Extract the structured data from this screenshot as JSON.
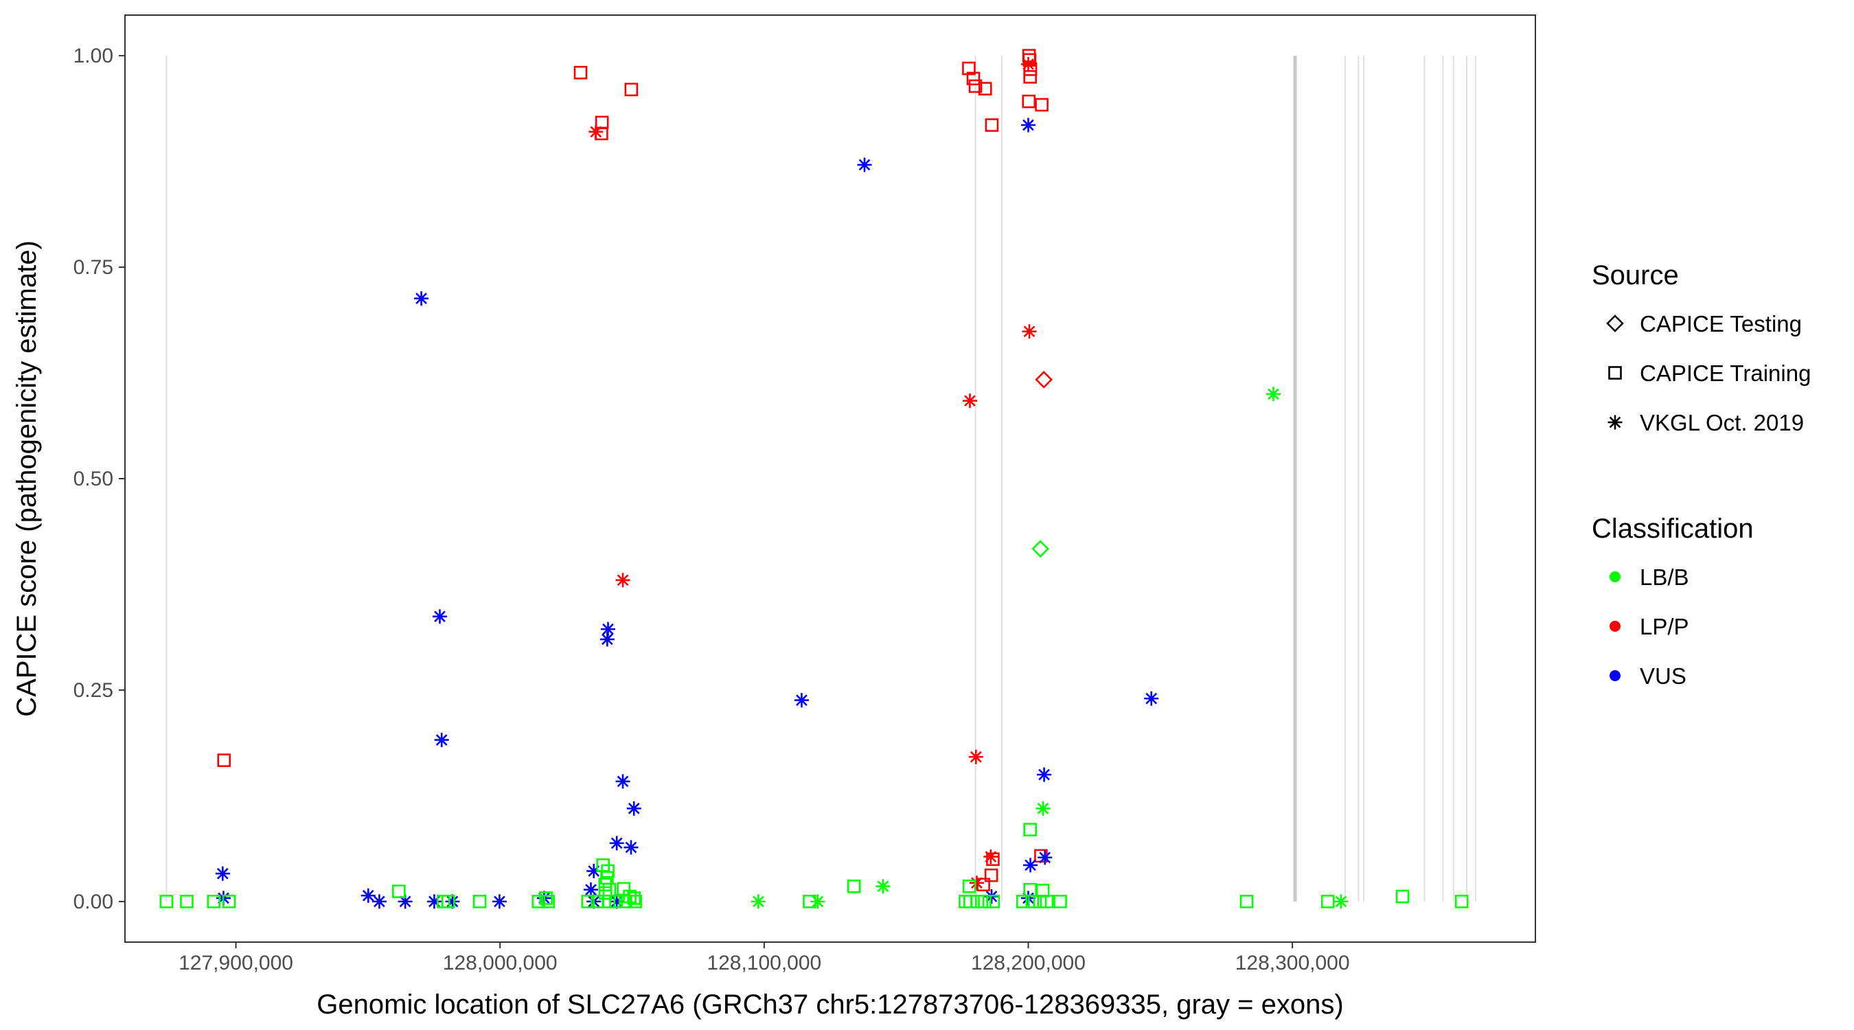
{
  "chart_data": {
    "type": "scatter",
    "title": "",
    "xlabel": "Genomic location of SLC27A6 (GRCh37 chr5:127873706-128369335, gray = exons)",
    "ylabel": "CAPICE score (pathogenicity estimate)",
    "xlim": [
      127858000,
      128392000
    ],
    "ylim": [
      -0.048,
      1.048
    ],
    "x_ticks": [
      127900000,
      128000000,
      128100000,
      128200000,
      128300000
    ],
    "x_tick_labels": [
      "127,900,000",
      "128,000,000",
      "128,100,000",
      "128,200,000",
      "128,300,000"
    ],
    "y_ticks": [
      0,
      0.25,
      0.5,
      0.75,
      1.0
    ],
    "y_tick_labels": [
      "0.00",
      "0.25",
      "0.50",
      "0.75",
      "1.00"
    ],
    "grid": false,
    "legend_position": "right",
    "exons": [
      127873706,
      128180000,
      128190000,
      128301000,
      128320000,
      128325000,
      128327000,
      128350000,
      128357000,
      128361000,
      128366000,
      128369335
    ],
    "legends": [
      {
        "title": "Source",
        "entries": [
          {
            "label": "CAPICE Testing",
            "shape": "diamond"
          },
          {
            "label": "CAPICE Training",
            "shape": "square"
          },
          {
            "label": "VKGL Oct. 2019",
            "shape": "asterisk"
          }
        ]
      },
      {
        "title": "Classification",
        "entries": [
          {
            "label": "LB/B",
            "color": "#00FF00"
          },
          {
            "label": "LP/P",
            "color": "#FF0000"
          },
          {
            "label": "VUS",
            "color": "#0000FF"
          }
        ]
      }
    ],
    "colors": {
      "LB/B": "#00FF00",
      "LP/P": "#FF0000",
      "VUS": "#0000FF"
    },
    "points": [
      {
        "x": 128030500,
        "y": 0.98,
        "shape": "square",
        "cls": "LP/P"
      },
      {
        "x": 128049700,
        "y": 0.96,
        "shape": "square",
        "cls": "LP/P"
      },
      {
        "x": 128038600,
        "y": 0.921,
        "shape": "square",
        "cls": "LP/P"
      },
      {
        "x": 128038400,
        "y": 0.908,
        "shape": "square",
        "cls": "LP/P"
      },
      {
        "x": 128036300,
        "y": 0.91,
        "shape": "asterisk",
        "cls": "LP/P"
      },
      {
        "x": 127895500,
        "y": 0.167,
        "shape": "square",
        "cls": "LP/P"
      },
      {
        "x": 128046500,
        "y": 0.38,
        "shape": "asterisk",
        "cls": "LP/P"
      },
      {
        "x": 128177500,
        "y": 0.985,
        "shape": "square",
        "cls": "LP/P"
      },
      {
        "x": 128179200,
        "y": 0.973,
        "shape": "square",
        "cls": "LP/P"
      },
      {
        "x": 128180000,
        "y": 0.964,
        "shape": "square",
        "cls": "LP/P"
      },
      {
        "x": 128183700,
        "y": 0.961,
        "shape": "square",
        "cls": "LP/P"
      },
      {
        "x": 128186200,
        "y": 0.918,
        "shape": "square",
        "cls": "LP/P"
      },
      {
        "x": 128200300,
        "y": 1.0,
        "shape": "square",
        "cls": "LP/P"
      },
      {
        "x": 128200500,
        "y": 0.995,
        "shape": "square",
        "cls": "LP/P"
      },
      {
        "x": 128200000,
        "y": 0.99,
        "shape": "asterisk",
        "cls": "LP/P"
      },
      {
        "x": 128200800,
        "y": 0.984,
        "shape": "square",
        "cls": "LP/P"
      },
      {
        "x": 128200700,
        "y": 0.975,
        "shape": "square",
        "cls": "LP/P"
      },
      {
        "x": 128200200,
        "y": 0.946,
        "shape": "square",
        "cls": "LP/P"
      },
      {
        "x": 128205100,
        "y": 0.942,
        "shape": "square",
        "cls": "LP/P"
      },
      {
        "x": 128200400,
        "y": 0.674,
        "shape": "asterisk",
        "cls": "LP/P"
      },
      {
        "x": 128205900,
        "y": 0.617,
        "shape": "diamond",
        "cls": "LP/P"
      },
      {
        "x": 128177900,
        "y": 0.592,
        "shape": "asterisk",
        "cls": "LP/P"
      },
      {
        "x": 128180200,
        "y": 0.171,
        "shape": "asterisk",
        "cls": "LP/P"
      },
      {
        "x": 128185800,
        "y": 0.053,
        "shape": "asterisk",
        "cls": "LP/P"
      },
      {
        "x": 128186600,
        "y": 0.05,
        "shape": "square",
        "cls": "LP/P"
      },
      {
        "x": 128204800,
        "y": 0.054,
        "shape": "square",
        "cls": "LP/P"
      },
      {
        "x": 128186000,
        "y": 0.031,
        "shape": "square",
        "cls": "LP/P"
      },
      {
        "x": 128180500,
        "y": 0.022,
        "shape": "asterisk",
        "cls": "LP/P"
      },
      {
        "x": 128183000,
        "y": 0.02,
        "shape": "square",
        "cls": "LP/P"
      },
      {
        "x": 128200000,
        "y": 0.918,
        "shape": "asterisk",
        "cls": "VUS"
      },
      {
        "x": 128138000,
        "y": 0.871,
        "shape": "asterisk",
        "cls": "VUS"
      },
      {
        "x": 127970200,
        "y": 0.713,
        "shape": "asterisk",
        "cls": "VUS"
      },
      {
        "x": 127977200,
        "y": 0.337,
        "shape": "asterisk",
        "cls": "VUS"
      },
      {
        "x": 128040900,
        "y": 0.322,
        "shape": "asterisk",
        "cls": "VUS"
      },
      {
        "x": 128040600,
        "y": 0.31,
        "shape": "asterisk",
        "cls": "VUS"
      },
      {
        "x": 128246600,
        "y": 0.24,
        "shape": "asterisk",
        "cls": "VUS"
      },
      {
        "x": 128114200,
        "y": 0.238,
        "shape": "asterisk",
        "cls": "VUS"
      },
      {
        "x": 127977900,
        "y": 0.191,
        "shape": "asterisk",
        "cls": "VUS"
      },
      {
        "x": 128206000,
        "y": 0.15,
        "shape": "asterisk",
        "cls": "VUS"
      },
      {
        "x": 128046500,
        "y": 0.142,
        "shape": "asterisk",
        "cls": "VUS"
      },
      {
        "x": 128050700,
        "y": 0.11,
        "shape": "asterisk",
        "cls": "VUS"
      },
      {
        "x": 128044200,
        "y": 0.069,
        "shape": "asterisk",
        "cls": "VUS"
      },
      {
        "x": 128049600,
        "y": 0.064,
        "shape": "asterisk",
        "cls": "VUS"
      },
      {
        "x": 128206300,
        "y": 0.052,
        "shape": "asterisk",
        "cls": "VUS"
      },
      {
        "x": 128200800,
        "y": 0.043,
        "shape": "asterisk",
        "cls": "VUS"
      },
      {
        "x": 128035500,
        "y": 0.036,
        "shape": "asterisk",
        "cls": "VUS"
      },
      {
        "x": 127895000,
        "y": 0.033,
        "shape": "asterisk",
        "cls": "VUS"
      },
      {
        "x": 128034400,
        "y": 0.014,
        "shape": "asterisk",
        "cls": "VUS"
      },
      {
        "x": 127950100,
        "y": 0.007,
        "shape": "asterisk",
        "cls": "VUS"
      },
      {
        "x": 127895300,
        "y": 0.004,
        "shape": "asterisk",
        "cls": "VUS"
      },
      {
        "x": 128016700,
        "y": 0.004,
        "shape": "asterisk",
        "cls": "VUS"
      },
      {
        "x": 128186100,
        "y": 0.006,
        "shape": "asterisk",
        "cls": "VUS"
      },
      {
        "x": 128200000,
        "y": 0.004,
        "shape": "asterisk",
        "cls": "VUS"
      },
      {
        "x": 127954300,
        "y": 0.0,
        "shape": "asterisk",
        "cls": "VUS"
      },
      {
        "x": 127964100,
        "y": 0.0,
        "shape": "asterisk",
        "cls": "VUS"
      },
      {
        "x": 127975100,
        "y": 0.0,
        "shape": "asterisk",
        "cls": "VUS"
      },
      {
        "x": 127982000,
        "y": 0.0,
        "shape": "asterisk",
        "cls": "VUS"
      },
      {
        "x": 127999800,
        "y": 0.0,
        "shape": "asterisk",
        "cls": "VUS"
      },
      {
        "x": 128035500,
        "y": 0.0,
        "shape": "asterisk",
        "cls": "VUS"
      },
      {
        "x": 128044200,
        "y": 0.0,
        "shape": "asterisk",
        "cls": "VUS"
      },
      {
        "x": 128292800,
        "y": 0.6,
        "shape": "asterisk",
        "cls": "LB/B"
      },
      {
        "x": 128204600,
        "y": 0.417,
        "shape": "diamond",
        "cls": "LB/B"
      },
      {
        "x": 128205600,
        "y": 0.11,
        "shape": "asterisk",
        "cls": "LB/B"
      },
      {
        "x": 128200700,
        "y": 0.085,
        "shape": "square",
        "cls": "LB/B"
      },
      {
        "x": 128039000,
        "y": 0.043,
        "shape": "square",
        "cls": "LB/B"
      },
      {
        "x": 128040800,
        "y": 0.036,
        "shape": "square",
        "cls": "LB/B"
      },
      {
        "x": 128040500,
        "y": 0.028,
        "shape": "square",
        "cls": "LB/B"
      },
      {
        "x": 128039800,
        "y": 0.02,
        "shape": "square",
        "cls": "LB/B"
      },
      {
        "x": 128041400,
        "y": 0.014,
        "shape": "square",
        "cls": "LB/B"
      },
      {
        "x": 128046800,
        "y": 0.015,
        "shape": "square",
        "cls": "LB/B"
      },
      {
        "x": 128039900,
        "y": 0.01,
        "shape": "square",
        "cls": "LB/B"
      },
      {
        "x": 128134000,
        "y": 0.018,
        "shape": "square",
        "cls": "LB/B"
      },
      {
        "x": 128145000,
        "y": 0.018,
        "shape": "asterisk",
        "cls": "LB/B"
      },
      {
        "x": 128177700,
        "y": 0.018,
        "shape": "square",
        "cls": "LB/B"
      },
      {
        "x": 127961700,
        "y": 0.012,
        "shape": "square",
        "cls": "LB/B"
      },
      {
        "x": 128200700,
        "y": 0.014,
        "shape": "square",
        "cls": "LB/B"
      },
      {
        "x": 128205500,
        "y": 0.013,
        "shape": "square",
        "cls": "LB/B"
      },
      {
        "x": 128341700,
        "y": 0.006,
        "shape": "square",
        "cls": "LB/B"
      },
      {
        "x": 128049100,
        "y": 0.006,
        "shape": "square",
        "cls": "LB/B"
      },
      {
        "x": 128050700,
        "y": 0.004,
        "shape": "square",
        "cls": "LB/B"
      },
      {
        "x": 128017400,
        "y": 0.004,
        "shape": "square",
        "cls": "LB/B"
      },
      {
        "x": 127873700,
        "y": 0.0,
        "shape": "square",
        "cls": "LB/B"
      },
      {
        "x": 127881400,
        "y": 0.0,
        "shape": "square",
        "cls": "LB/B"
      },
      {
        "x": 127891600,
        "y": 0.0,
        "shape": "square",
        "cls": "LB/B"
      },
      {
        "x": 127897400,
        "y": 0.0,
        "shape": "square",
        "cls": "LB/B"
      },
      {
        "x": 127978600,
        "y": 0.0,
        "shape": "square",
        "cls": "LB/B"
      },
      {
        "x": 127980400,
        "y": 0.0,
        "shape": "square",
        "cls": "LB/B"
      },
      {
        "x": 127992300,
        "y": 0.0,
        "shape": "square",
        "cls": "LB/B"
      },
      {
        "x": 128014600,
        "y": 0.0,
        "shape": "square",
        "cls": "LB/B"
      },
      {
        "x": 128018200,
        "y": 0.0,
        "shape": "square",
        "cls": "LB/B"
      },
      {
        "x": 128033300,
        "y": 0.0,
        "shape": "square",
        "cls": "LB/B"
      },
      {
        "x": 128036900,
        "y": 0.0,
        "shape": "square",
        "cls": "LB/B"
      },
      {
        "x": 128041100,
        "y": 0.0,
        "shape": "square",
        "cls": "LB/B"
      },
      {
        "x": 128043900,
        "y": 0.0,
        "shape": "square",
        "cls": "LB/B"
      },
      {
        "x": 128047500,
        "y": 0.0,
        "shape": "square",
        "cls": "LB/B"
      },
      {
        "x": 128051200,
        "y": 0.0,
        "shape": "square",
        "cls": "LB/B"
      },
      {
        "x": 128097800,
        "y": 0.0,
        "shape": "asterisk",
        "cls": "LB/B"
      },
      {
        "x": 128117200,
        "y": 0.0,
        "shape": "square",
        "cls": "LB/B"
      },
      {
        "x": 128120300,
        "y": 0.0,
        "shape": "asterisk",
        "cls": "LB/B"
      },
      {
        "x": 128176200,
        "y": 0.0,
        "shape": "square",
        "cls": "LB/B"
      },
      {
        "x": 128178000,
        "y": 0.0,
        "shape": "square",
        "cls": "LB/B"
      },
      {
        "x": 128180800,
        "y": 0.0,
        "shape": "square",
        "cls": "LB/B"
      },
      {
        "x": 128183500,
        "y": 0.0,
        "shape": "square",
        "cls": "LB/B"
      },
      {
        "x": 128186700,
        "y": 0.0,
        "shape": "square",
        "cls": "LB/B"
      },
      {
        "x": 128198000,
        "y": 0.0,
        "shape": "square",
        "cls": "LB/B"
      },
      {
        "x": 128201500,
        "y": 0.0,
        "shape": "square",
        "cls": "LB/B"
      },
      {
        "x": 128204400,
        "y": 0.0,
        "shape": "square",
        "cls": "LB/B"
      },
      {
        "x": 128207000,
        "y": 0.0,
        "shape": "square",
        "cls": "LB/B"
      },
      {
        "x": 128212100,
        "y": 0.0,
        "shape": "square",
        "cls": "LB/B"
      },
      {
        "x": 128282700,
        "y": 0.0,
        "shape": "square",
        "cls": "LB/B"
      },
      {
        "x": 128313400,
        "y": 0.0,
        "shape": "square",
        "cls": "LB/B"
      },
      {
        "x": 128318400,
        "y": 0.0,
        "shape": "asterisk",
        "cls": "LB/B"
      },
      {
        "x": 128364100,
        "y": 0.0,
        "shape": "square",
        "cls": "LB/B"
      }
    ]
  }
}
